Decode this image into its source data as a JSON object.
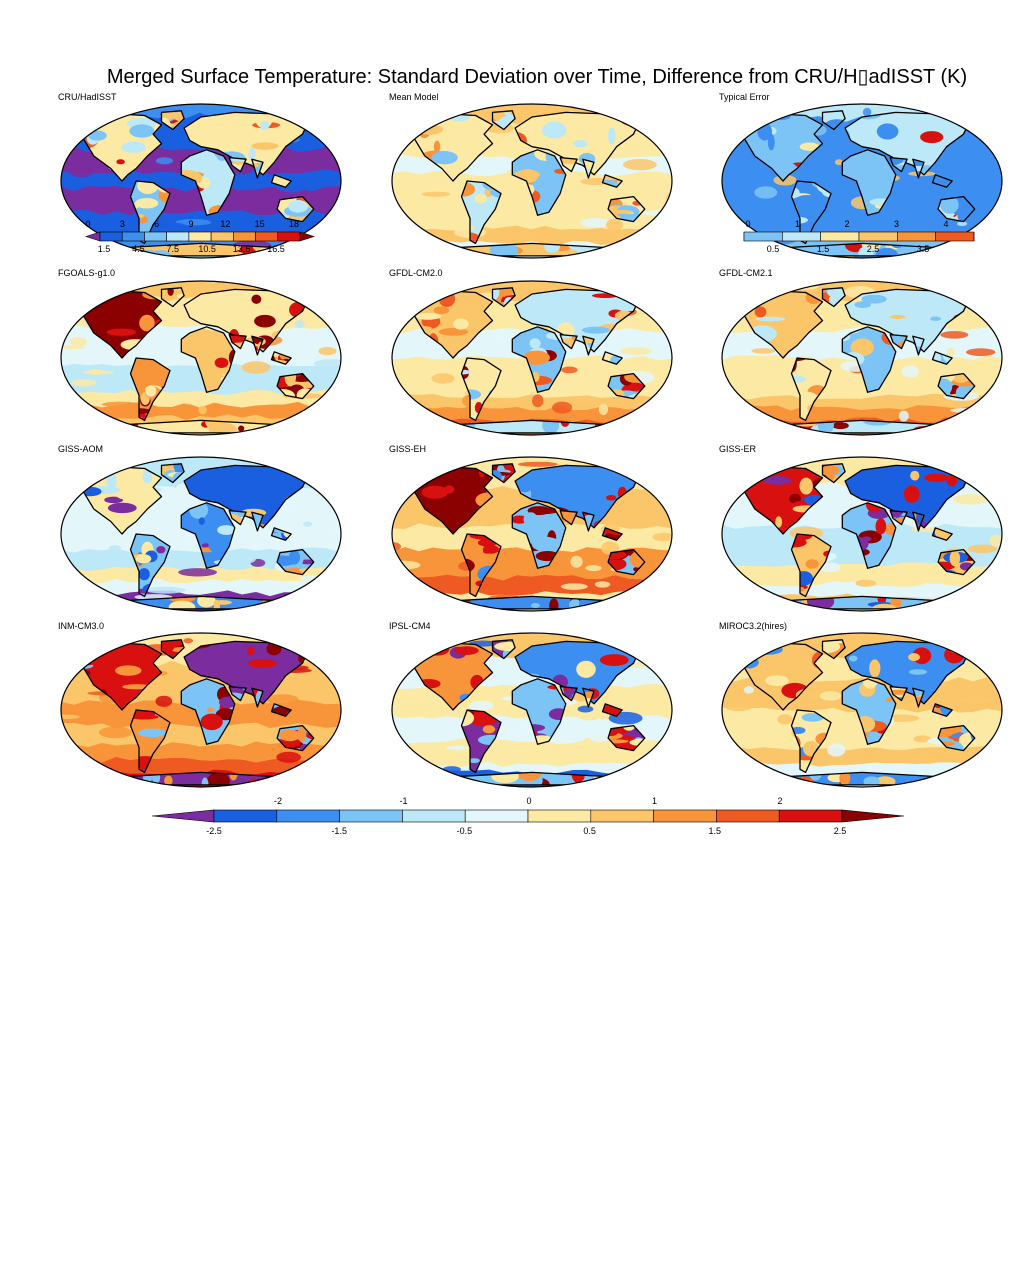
{
  "title": "Merged Surface Temperature: Standard Deviation over Time, Difference from CRU/H▯adISST (K)",
  "panels": [
    {
      "label": "CRU/HadISST",
      "scheme": "obs"
    },
    {
      "label": "Mean Model",
      "scheme": "mean"
    },
    {
      "label": "Typical Error",
      "scheme": "err"
    },
    {
      "label": "FGOALS-g1.0",
      "scheme": "hot"
    },
    {
      "label": "GFDL-CM2.0",
      "scheme": "warm"
    },
    {
      "label": "GFDL-CM2.1",
      "scheme": "warm"
    },
    {
      "label": "GISS-AOM",
      "scheme": "cool"
    },
    {
      "label": "GISS-EH",
      "scheme": "hot2"
    },
    {
      "label": "GISS-ER",
      "scheme": "mixed"
    },
    {
      "label": "INM-CM3.0",
      "scheme": "hot3"
    },
    {
      "label": "IPSL-CM4",
      "scheme": "mixed2"
    },
    {
      "label": "MIROC3.2(hires)",
      "scheme": "warm2"
    }
  ],
  "colorbars": {
    "observation": {
      "top_labels": [
        "0",
        "3",
        "6",
        "9",
        "12",
        "15",
        "18"
      ],
      "bottom_labels": [
        "1.5",
        "4.5",
        "7.5",
        "10.5",
        "13.5",
        "16.5"
      ],
      "colors": [
        "#7b2c9e",
        "#1a5fe0",
        "#3c8ef0",
        "#7cc4f5",
        "#bde8f7",
        "#fce9a4",
        "#fbc56a",
        "#f8953a",
        "#ef5a22",
        "#d81010",
        "#8b0000"
      ]
    },
    "error": {
      "top_labels": [
        "0",
        "1",
        "2",
        "3",
        "4"
      ],
      "bottom_labels": [
        "0.5",
        "1.5",
        "2.5",
        "3.5"
      ],
      "colors": [
        "#3c8ef0",
        "#7cc4f5",
        "#bde8f7",
        "#fce9a4",
        "#fbc56a",
        "#f8953a",
        "#ef5a22",
        "#d81010"
      ]
    },
    "difference": {
      "top_labels": [
        "-2",
        "-1",
        "0",
        "1",
        "2"
      ],
      "bottom_labels": [
        "-2.5",
        "-1.5",
        "-0.5",
        "0.5",
        "1.5",
        "2.5"
      ],
      "colors": [
        "#7b2c9e",
        "#1a5fe0",
        "#3c8ef0",
        "#7cc4f5",
        "#bde8f7",
        "#e3f7fb",
        "#fce9a4",
        "#fbc56a",
        "#f8953a",
        "#ef5a22",
        "#d81010",
        "#8b0000"
      ]
    }
  }
}
